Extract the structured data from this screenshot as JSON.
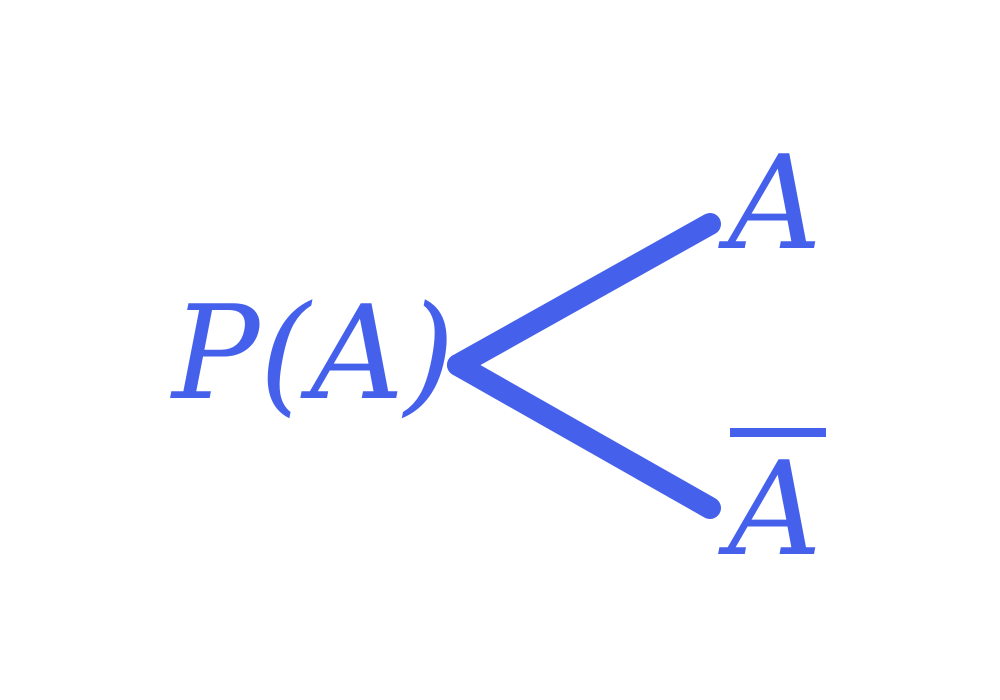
{
  "diagram": {
    "root": {
      "text": "P(A)"
    },
    "branches": [
      {
        "text": "A",
        "overline": false
      },
      {
        "text": "A",
        "overline": true
      }
    ]
  },
  "colors": {
    "ink": "#4561ec",
    "background": "#ffffff"
  }
}
